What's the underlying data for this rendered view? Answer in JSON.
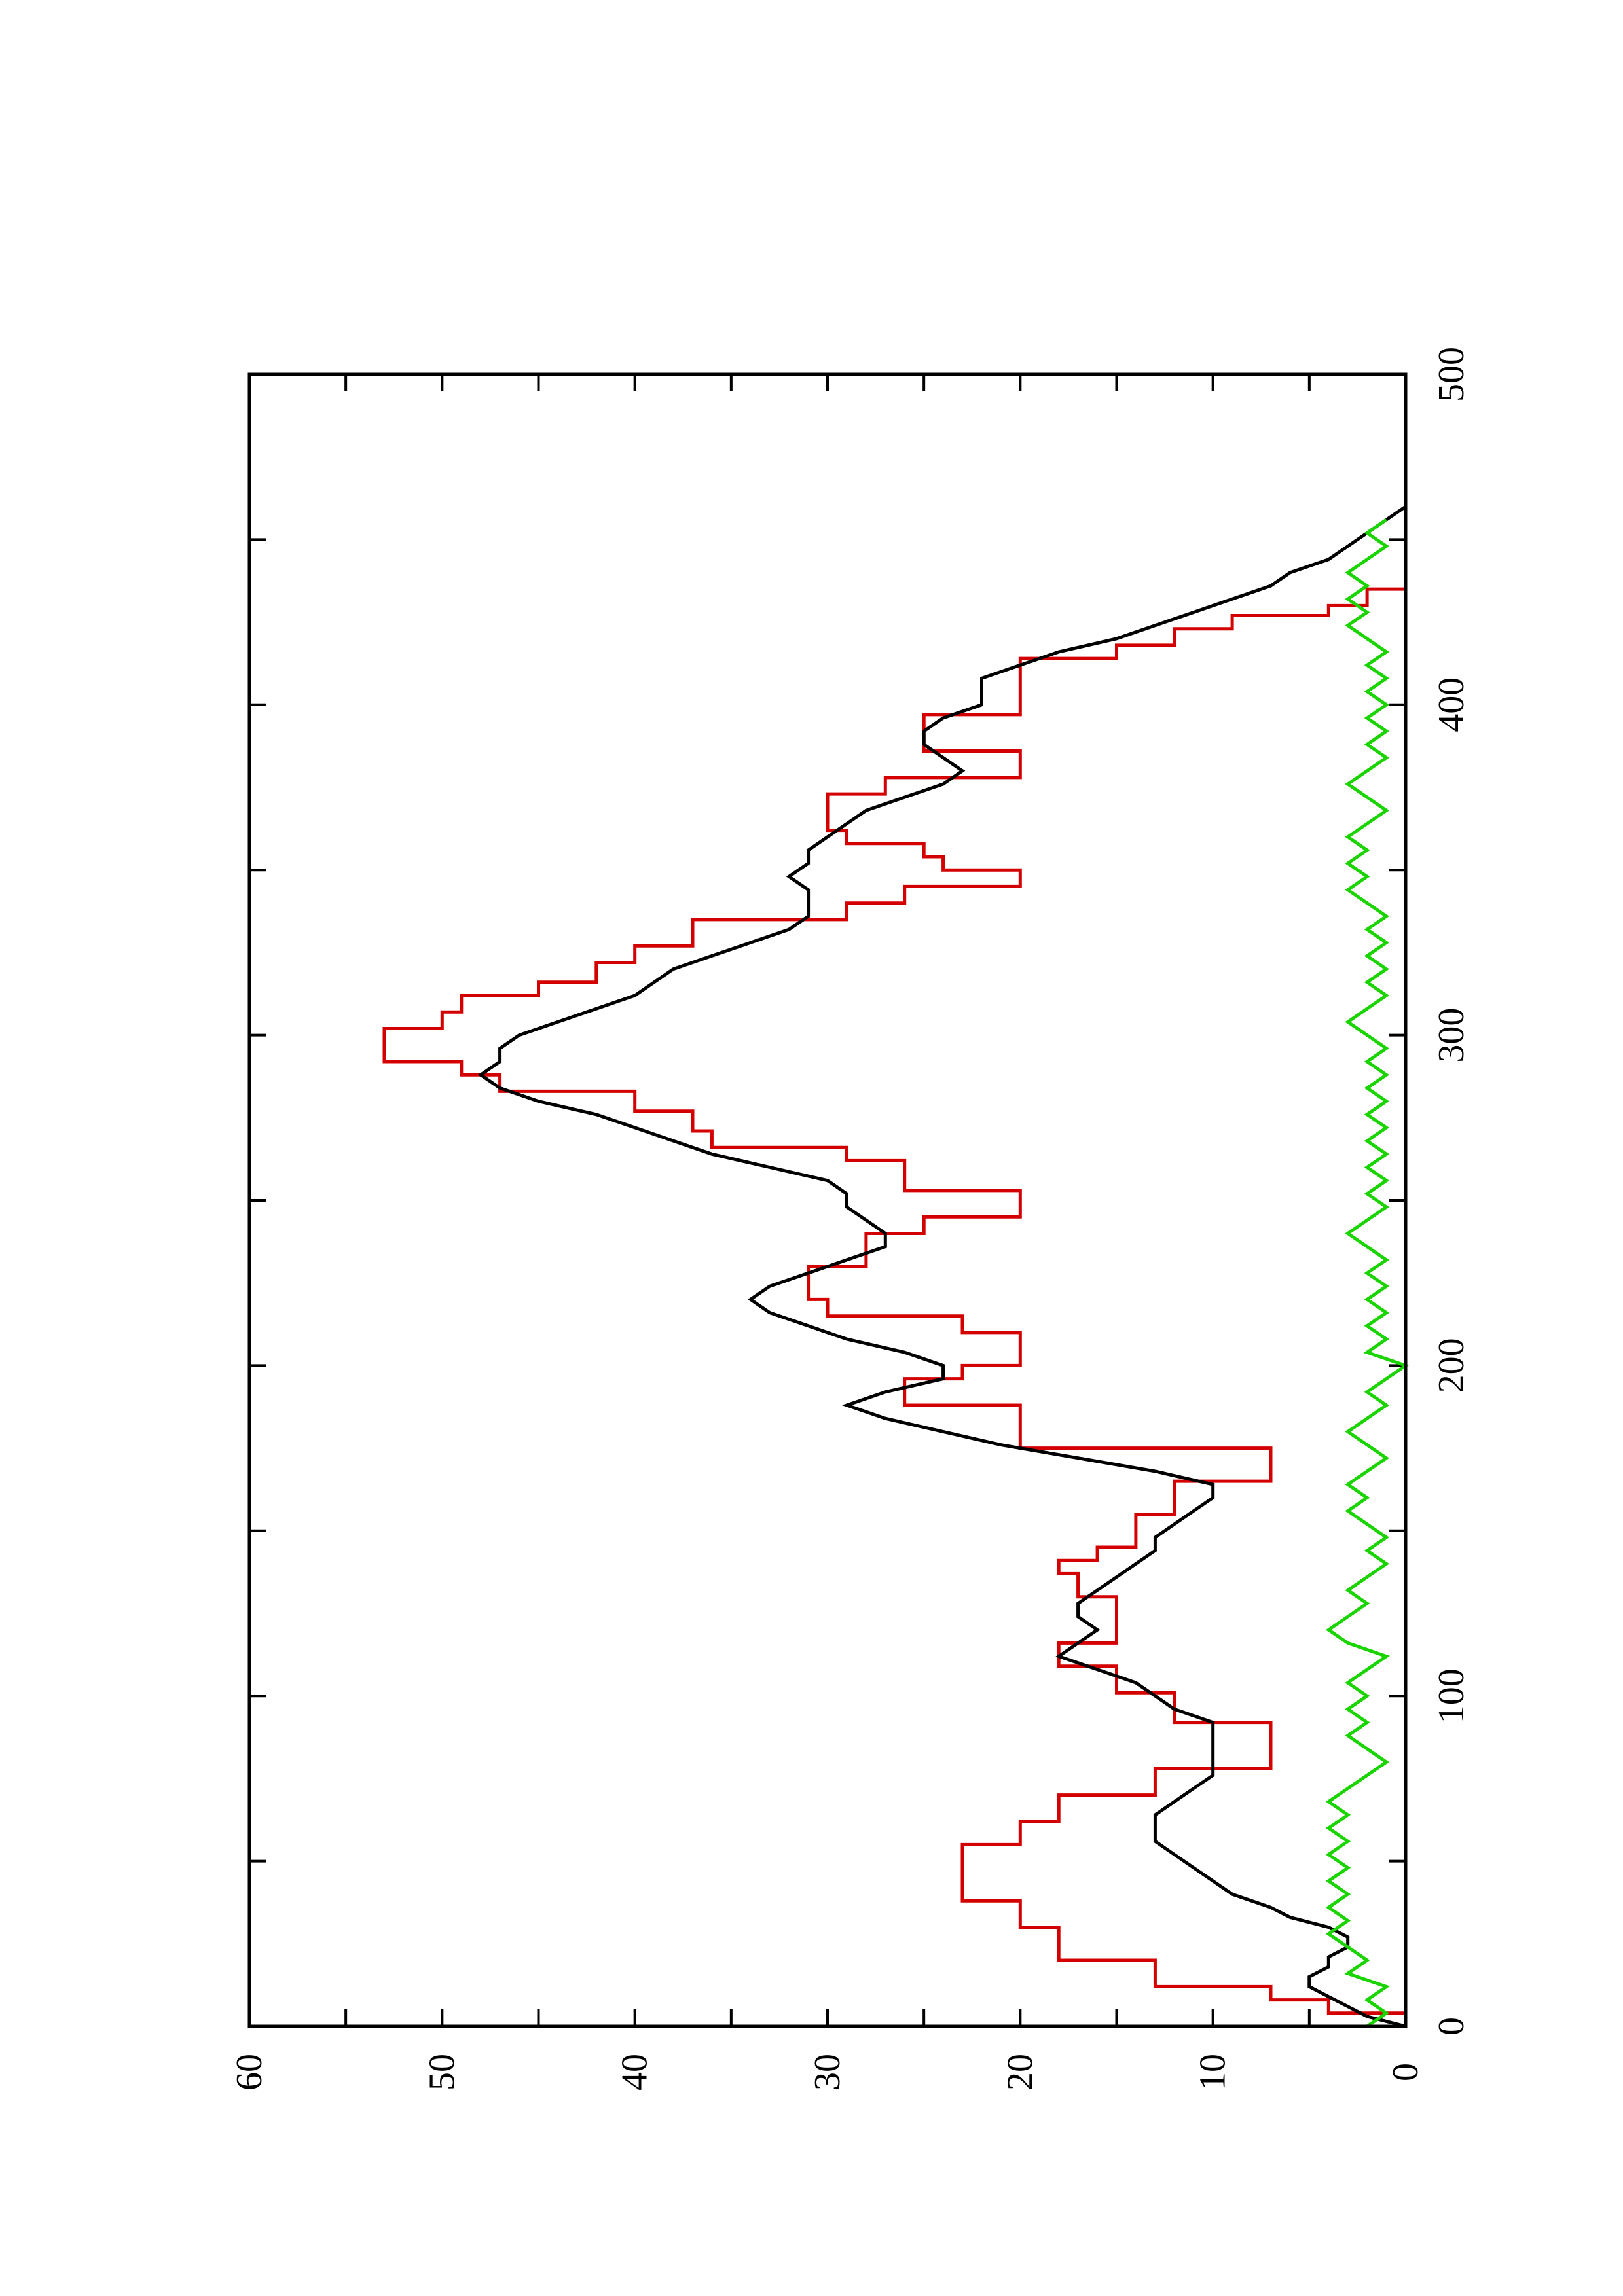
{
  "chart_data": {
    "type": "line",
    "orientation": "rotated 90 degrees counter-clockwise",
    "title": "",
    "xlabel": "",
    "ylabel": "",
    "xlim": [
      0,
      500
    ],
    "ylim": [
      0,
      60
    ],
    "x_ticks": [
      0,
      100,
      200,
      300,
      400,
      500
    ],
    "x_tick_labels": [
      "0",
      "100",
      "200",
      "300",
      "400",
      "500"
    ],
    "y_ticks": [
      0,
      10,
      20,
      30,
      40,
      50,
      60
    ],
    "y_tick_labels": [
      "0",
      "10",
      "20",
      "30",
      "40",
      "50",
      "60"
    ],
    "grid": false,
    "legend": "none",
    "series": [
      {
        "color": "#d40000",
        "step": true,
        "points": [
          [
            0,
            0
          ],
          [
            4,
            4
          ],
          [
            8,
            7
          ],
          [
            12,
            13
          ],
          [
            20,
            18
          ],
          [
            30,
            20
          ],
          [
            38,
            23
          ],
          [
            48,
            23
          ],
          [
            55,
            20
          ],
          [
            62,
            18
          ],
          [
            70,
            13
          ],
          [
            75,
            13
          ],
          [
            78,
            7
          ],
          [
            89,
            7
          ],
          [
            92,
            12
          ],
          [
            98,
            12
          ],
          [
            101,
            15
          ],
          [
            106,
            15
          ],
          [
            109,
            18
          ],
          [
            112,
            18
          ],
          [
            116,
            15
          ],
          [
            127,
            15
          ],
          [
            130,
            17
          ],
          [
            133,
            17
          ],
          [
            137,
            18
          ],
          [
            141,
            16
          ],
          [
            145,
            14
          ],
          [
            152,
            14
          ],
          [
            155,
            12
          ],
          [
            161,
            12
          ],
          [
            165,
            7
          ],
          [
            175,
            20
          ],
          [
            185,
            20
          ],
          [
            188,
            26
          ],
          [
            196,
            23
          ],
          [
            200,
            20
          ],
          [
            205,
            20
          ],
          [
            210,
            23
          ],
          [
            215,
            30
          ],
          [
            220,
            31
          ],
          [
            226,
            31
          ],
          [
            230,
            28
          ],
          [
            236,
            28
          ],
          [
            240,
            25
          ],
          [
            245,
            20
          ],
          [
            250,
            20
          ],
          [
            253,
            26
          ],
          [
            257,
            26
          ],
          [
            262,
            29
          ],
          [
            266,
            36
          ],
          [
            271,
            37
          ],
          [
            277,
            40
          ],
          [
            283,
            47
          ],
          [
            288,
            49
          ],
          [
            292,
            53
          ],
          [
            298,
            53
          ],
          [
            302,
            50
          ],
          [
            307,
            49
          ],
          [
            312,
            45
          ],
          [
            316,
            42
          ],
          [
            322,
            40
          ],
          [
            327,
            37
          ],
          [
            335,
            29
          ],
          [
            340,
            26
          ],
          [
            345,
            20
          ],
          [
            350,
            24
          ],
          [
            354,
            25
          ],
          [
            358,
            29
          ],
          [
            362,
            30
          ],
          [
            370,
            30
          ],
          [
            373,
            27
          ],
          [
            378,
            20
          ],
          [
            381,
            20
          ],
          [
            386,
            25
          ],
          [
            393,
            25
          ],
          [
            397,
            20
          ],
          [
            409,
            20
          ],
          [
            414,
            15
          ],
          [
            418,
            12
          ],
          [
            423,
            9
          ],
          [
            427,
            4
          ],
          [
            430,
            2
          ],
          [
            435,
            0
          ]
        ]
      },
      {
        "color": "#000000",
        "step": false,
        "points": [
          [
            0,
            0
          ],
          [
            3,
            2
          ],
          [
            6,
            3
          ],
          [
            9,
            4
          ],
          [
            12,
            5
          ],
          [
            15,
            5
          ],
          [
            18,
            4
          ],
          [
            21,
            4
          ],
          [
            24,
            3
          ],
          [
            27,
            3
          ],
          [
            30,
            4
          ],
          [
            33,
            6
          ],
          [
            36,
            7
          ],
          [
            40,
            9
          ],
          [
            44,
            10
          ],
          [
            48,
            11
          ],
          [
            52,
            12
          ],
          [
            56,
            13
          ],
          [
            60,
            13
          ],
          [
            64,
            13
          ],
          [
            68,
            12
          ],
          [
            72,
            11
          ],
          [
            76,
            10
          ],
          [
            80,
            10
          ],
          [
            84,
            10
          ],
          [
            88,
            10
          ],
          [
            92,
            10
          ],
          [
            96,
            12
          ],
          [
            100,
            13
          ],
          [
            104,
            14
          ],
          [
            108,
            16
          ],
          [
            112,
            18
          ],
          [
            116,
            17
          ],
          [
            120,
            16
          ],
          [
            124,
            17
          ],
          [
            128,
            17
          ],
          [
            132,
            16
          ],
          [
            136,
            15
          ],
          [
            140,
            14
          ],
          [
            144,
            13
          ],
          [
            148,
            13
          ],
          [
            152,
            12
          ],
          [
            156,
            11
          ],
          [
            160,
            10
          ],
          [
            164,
            10
          ],
          [
            168,
            13
          ],
          [
            172,
            17
          ],
          [
            176,
            21
          ],
          [
            180,
            24
          ],
          [
            184,
            27
          ],
          [
            188,
            29
          ],
          [
            192,
            27
          ],
          [
            196,
            24
          ],
          [
            200,
            24
          ],
          [
            204,
            26
          ],
          [
            208,
            29
          ],
          [
            212,
            31
          ],
          [
            216,
            33
          ],
          [
            220,
            34
          ],
          [
            224,
            33
          ],
          [
            228,
            31
          ],
          [
            232,
            29
          ],
          [
            236,
            27
          ],
          [
            240,
            27
          ],
          [
            244,
            28
          ],
          [
            248,
            29
          ],
          [
            252,
            29
          ],
          [
            256,
            30
          ],
          [
            260,
            33
          ],
          [
            264,
            36
          ],
          [
            268,
            38
          ],
          [
            272,
            40
          ],
          [
            276,
            42
          ],
          [
            280,
            45
          ],
          [
            284,
            47
          ],
          [
            288,
            48
          ],
          [
            292,
            47
          ],
          [
            296,
            47
          ],
          [
            300,
            46
          ],
          [
            304,
            44
          ],
          [
            308,
            42
          ],
          [
            312,
            40
          ],
          [
            316,
            39
          ],
          [
            320,
            38
          ],
          [
            324,
            36
          ],
          [
            328,
            34
          ],
          [
            332,
            32
          ],
          [
            336,
            31
          ],
          [
            340,
            31
          ],
          [
            344,
            31
          ],
          [
            348,
            32
          ],
          [
            352,
            31
          ],
          [
            356,
            31
          ],
          [
            360,
            30
          ],
          [
            364,
            29
          ],
          [
            368,
            28
          ],
          [
            372,
            26
          ],
          [
            376,
            24
          ],
          [
            380,
            23
          ],
          [
            384,
            24
          ],
          [
            388,
            25
          ],
          [
            392,
            25
          ],
          [
            396,
            24
          ],
          [
            400,
            22
          ],
          [
            404,
            22
          ],
          [
            408,
            22
          ],
          [
            412,
            20
          ],
          [
            416,
            18
          ],
          [
            420,
            15
          ],
          [
            424,
            13
          ],
          [
            428,
            11
          ],
          [
            432,
            9
          ],
          [
            436,
            7
          ],
          [
            440,
            6
          ],
          [
            444,
            4
          ],
          [
            448,
            3
          ],
          [
            452,
            2
          ],
          [
            456,
            1
          ],
          [
            460,
            0
          ]
        ]
      },
      {
        "color": "#1ad400",
        "step": false,
        "points": [
          [
            0,
            2
          ],
          [
            4,
            1
          ],
          [
            8,
            2
          ],
          [
            12,
            1
          ],
          [
            16,
            3
          ],
          [
            20,
            2
          ],
          [
            24,
            3
          ],
          [
            28,
            4
          ],
          [
            32,
            3
          ],
          [
            36,
            4
          ],
          [
            40,
            3
          ],
          [
            44,
            4
          ],
          [
            48,
            3
          ],
          [
            52,
            4
          ],
          [
            56,
            3
          ],
          [
            60,
            4
          ],
          [
            64,
            3
          ],
          [
            68,
            4
          ],
          [
            72,
            3
          ],
          [
            76,
            2
          ],
          [
            80,
            1
          ],
          [
            84,
            2
          ],
          [
            88,
            3
          ],
          [
            92,
            2
          ],
          [
            96,
            3
          ],
          [
            100,
            2
          ],
          [
            104,
            3
          ],
          [
            108,
            2
          ],
          [
            112,
            1
          ],
          [
            116,
            3
          ],
          [
            120,
            4
          ],
          [
            124,
            3
          ],
          [
            128,
            2
          ],
          [
            132,
            3
          ],
          [
            136,
            2
          ],
          [
            140,
            1
          ],
          [
            144,
            2
          ],
          [
            148,
            1
          ],
          [
            152,
            2
          ],
          [
            156,
            3
          ],
          [
            160,
            2
          ],
          [
            164,
            3
          ],
          [
            168,
            2
          ],
          [
            172,
            1
          ],
          [
            176,
            2
          ],
          [
            180,
            3
          ],
          [
            184,
            2
          ],
          [
            188,
            1
          ],
          [
            192,
            2
          ],
          [
            196,
            1
          ],
          [
            200,
            0
          ],
          [
            204,
            2
          ],
          [
            208,
            1
          ],
          [
            212,
            2
          ],
          [
            216,
            1
          ],
          [
            220,
            2
          ],
          [
            224,
            1
          ],
          [
            228,
            2
          ],
          [
            232,
            1
          ],
          [
            236,
            2
          ],
          [
            240,
            3
          ],
          [
            244,
            2
          ],
          [
            248,
            1
          ],
          [
            252,
            2
          ],
          [
            256,
            1
          ],
          [
            260,
            2
          ],
          [
            264,
            1
          ],
          [
            268,
            2
          ],
          [
            272,
            1
          ],
          [
            276,
            2
          ],
          [
            280,
            1
          ],
          [
            284,
            2
          ],
          [
            288,
            1
          ],
          [
            292,
            2
          ],
          [
            296,
            1
          ],
          [
            300,
            2
          ],
          [
            304,
            3
          ],
          [
            308,
            2
          ],
          [
            312,
            1
          ],
          [
            316,
            2
          ],
          [
            320,
            1
          ],
          [
            324,
            2
          ],
          [
            328,
            1
          ],
          [
            332,
            2
          ],
          [
            336,
            1
          ],
          [
            340,
            2
          ],
          [
            344,
            3
          ],
          [
            348,
            2
          ],
          [
            352,
            3
          ],
          [
            356,
            2
          ],
          [
            360,
            3
          ],
          [
            364,
            2
          ],
          [
            368,
            1
          ],
          [
            372,
            2
          ],
          [
            376,
            3
          ],
          [
            380,
            2
          ],
          [
            384,
            1
          ],
          [
            388,
            2
          ],
          [
            392,
            1
          ],
          [
            396,
            2
          ],
          [
            400,
            1
          ],
          [
            404,
            2
          ],
          [
            408,
            1
          ],
          [
            412,
            2
          ],
          [
            416,
            1
          ],
          [
            420,
            2
          ],
          [
            424,
            3
          ],
          [
            428,
            2
          ],
          [
            432,
            3
          ],
          [
            436,
            2
          ],
          [
            440,
            3
          ],
          [
            444,
            2
          ],
          [
            448,
            1
          ],
          [
            452,
            2
          ],
          [
            456,
            1
          ]
        ]
      }
    ]
  }
}
